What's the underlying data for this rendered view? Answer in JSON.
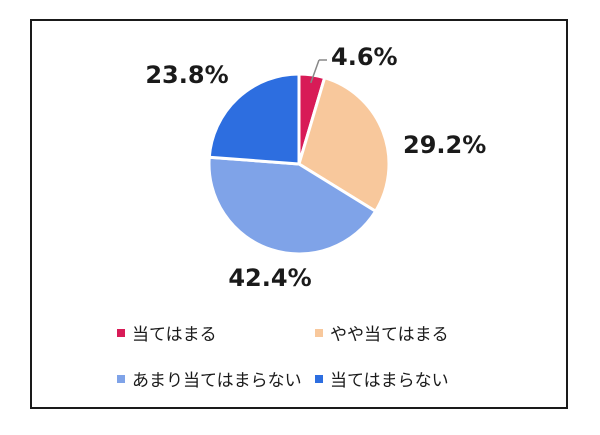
{
  "chart_data": {
    "type": "pie",
    "title": "",
    "start_angle_deg": 0,
    "direction": "clockwise",
    "slices": [
      {
        "label": "当てはまる",
        "value": 4.6,
        "display": "4.6%",
        "color": "#d81b57"
      },
      {
        "label": "やや当てはまる",
        "value": 29.2,
        "display": "29.2%",
        "color": "#f8c89c"
      },
      {
        "label": "あまり当てはまらない",
        "value": 42.4,
        "display": "42.4%",
        "color": "#7fa3e8"
      },
      {
        "label": "当てはまらない",
        "value": 23.8,
        "display": "23.8%",
        "color": "#2d6ee0"
      }
    ],
    "legend_position": "bottom",
    "data_labels": "outside"
  }
}
